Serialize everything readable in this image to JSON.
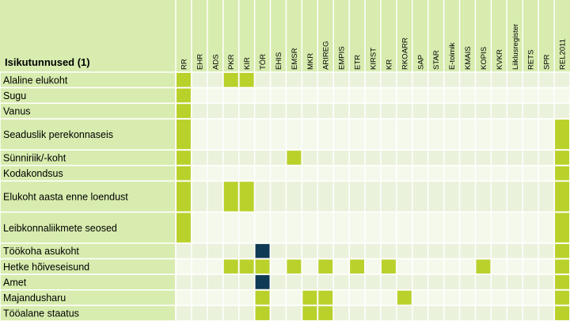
{
  "chart_data": {
    "type": "table",
    "title": "Isikutunnused (1)",
    "columns": [
      "RR",
      "EHR",
      "ADS",
      "PKR",
      "KIR",
      "TÖR",
      "EHIS",
      "EMSR",
      "MKR",
      "ARIREG",
      "EMPIS",
      "ETR",
      "KIRST",
      "KR",
      "RKOARR",
      "SAP",
      "STAR",
      "E-toimik",
      "KMAIS",
      "KOPIS",
      "KVKR",
      "Liiklusregister",
      "RETS",
      "SPR",
      "REL2011"
    ],
    "rows": [
      {
        "label": "Alaline elukoht",
        "lime": [
          "RR",
          "PKR",
          "KIR"
        ],
        "dark": []
      },
      {
        "label": "Sugu",
        "lime": [
          "RR"
        ],
        "dark": []
      },
      {
        "label": "Vanus",
        "lime": [
          "RR"
        ],
        "dark": []
      },
      {
        "label": "Seaduslik perekonnaseis",
        "lime": [
          "RR",
          "REL2011"
        ],
        "dark": []
      },
      {
        "label": "Sünniriik/-koht",
        "lime": [
          "RR",
          "EMSR",
          "REL2011"
        ],
        "dark": []
      },
      {
        "label": "Kodakondsus",
        "lime": [
          "RR",
          "REL2011"
        ],
        "dark": []
      },
      {
        "label": "Elukoht aasta enne loendust",
        "lime": [
          "RR",
          "PKR",
          "KIR",
          "REL2011"
        ],
        "dark": []
      },
      {
        "label": "Leibkonnaliikmete seosed",
        "lime": [
          "RR",
          "REL2011"
        ],
        "dark": []
      },
      {
        "label": "Töökoha asukoht",
        "lime": [
          "REL2011"
        ],
        "dark": [
          "TÖR"
        ]
      },
      {
        "label": "Hetke hõiveseisund",
        "lime": [
          "PKR",
          "KIR",
          "TÖR",
          "EMSR",
          "ARIREG",
          "ETR",
          "KR",
          "KOPIS",
          "REL2011"
        ],
        "dark": []
      },
      {
        "label": "Amet",
        "lime": [
          "REL2011"
        ],
        "dark": [
          "TÖR"
        ]
      },
      {
        "label": "Majandusharu",
        "lime": [
          "TÖR",
          "MKR",
          "ARIREG",
          "RKOARR",
          "REL2011"
        ],
        "dark": []
      },
      {
        "label": "Tööalane staatus",
        "lime": [
          "TÖR",
          "MKR",
          "ARIREG",
          "REL2011"
        ],
        "dark": []
      }
    ],
    "colors": {
      "label_bg": "#d7ecae",
      "header_bg": "#d7ecae",
      "row_even": "#eaf2dc",
      "row_odd": "#f4f9ec",
      "lime": "#bad12b",
      "dark": "#0f3a55",
      "grid": "#ffffff",
      "text": "#000000"
    }
  }
}
